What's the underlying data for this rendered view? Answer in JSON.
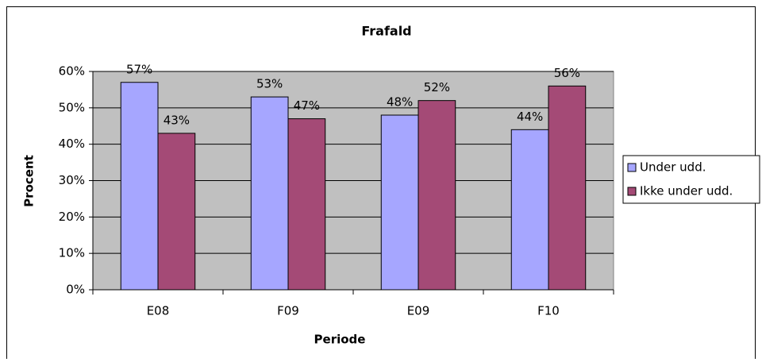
{
  "chart_data": {
    "type": "bar",
    "title": "Frafald",
    "x_label": "Periode",
    "y_label": "Procent",
    "categories": [
      "E08",
      "F09",
      "E09",
      "F10"
    ],
    "series": [
      {
        "name": "Under udd.",
        "color": "#a6a6ff",
        "values": [
          57,
          53,
          48,
          44
        ],
        "value_labels": [
          "57%",
          "53%",
          "48%",
          "44%"
        ]
      },
      {
        "name": "Ikke under udd.",
        "color": "#a44a76",
        "values": [
          43,
          47,
          52,
          56
        ],
        "value_labels": [
          "43%",
          "47%",
          "52%",
          "56%"
        ]
      }
    ],
    "ylim": [
      0,
      60
    ],
    "yticks": [
      {
        "value": 0,
        "label": "0%"
      },
      {
        "value": 10,
        "label": "10%"
      },
      {
        "value": 20,
        "label": "20%"
      },
      {
        "value": 30,
        "label": "30%"
      },
      {
        "value": 40,
        "label": "40%"
      },
      {
        "value": 50,
        "label": "50%"
      },
      {
        "value": 60,
        "label": "60%"
      }
    ],
    "grid": true,
    "legend": "right",
    "plot_background": "#c0c0c0"
  }
}
